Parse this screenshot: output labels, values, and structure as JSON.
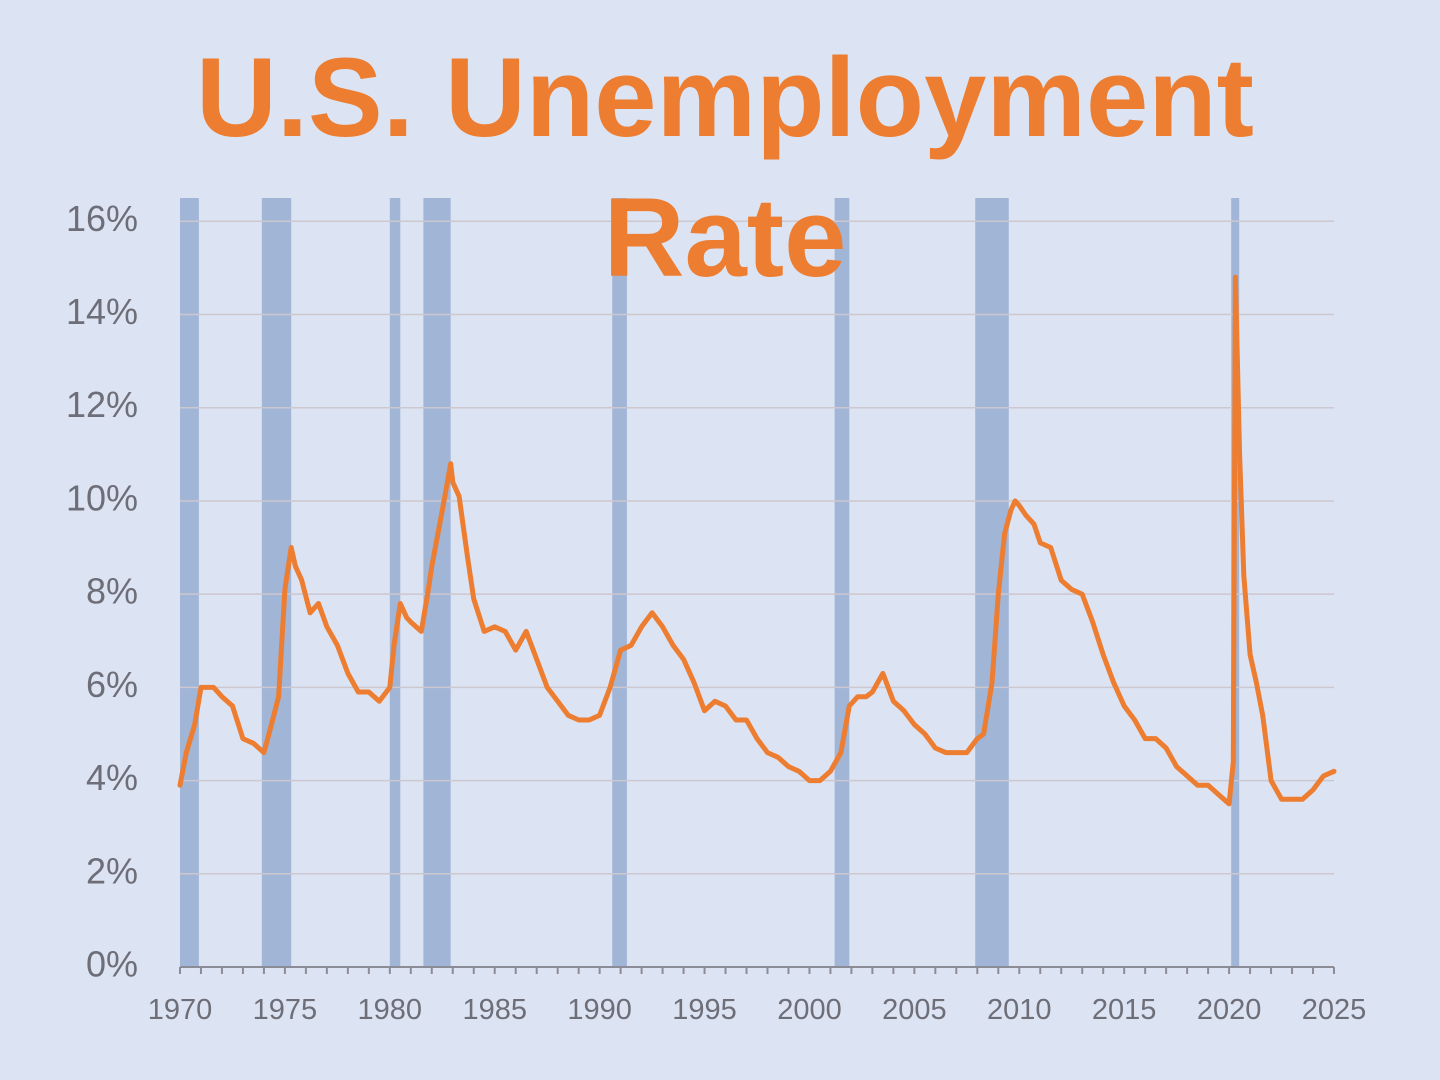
{
  "chart_data": {
    "type": "line",
    "title": "U.S. Unemployment Rate",
    "title_lines": [
      "U.S. Unemployment",
      "Rate"
    ],
    "xlabel": "",
    "ylabel": "",
    "xlim": [
      1970,
      2025
    ],
    "ylim": [
      0,
      16.5
    ],
    "y_ticks": [
      0,
      2,
      4,
      6,
      8,
      10,
      12,
      14,
      16
    ],
    "y_tick_labels": [
      "0%",
      "2%",
      "4%",
      "6%",
      "8%",
      "10%",
      "12%",
      "14%",
      "16%"
    ],
    "x_ticks": [
      1970,
      1975,
      1980,
      1985,
      1990,
      1995,
      2000,
      2005,
      2010,
      2015,
      2020,
      2025
    ],
    "x_tick_labels": [
      "1970",
      "1975",
      "1980",
      "1985",
      "1990",
      "1995",
      "2000",
      "2005",
      "2010",
      "2015",
      "2020",
      "2025"
    ],
    "grid": true,
    "legend": "none",
    "colors": {
      "background": "#dce4f3",
      "line": "#ed7d31",
      "title": "#ed7d31",
      "recession": "#8ea5cd",
      "grid": "#cdc7cf",
      "axis_text": "#6e6e78",
      "axis": "#8c8c96"
    },
    "recession_bands": [
      {
        "start": 1970.0,
        "end": 1970.9
      },
      {
        "start": 1973.9,
        "end": 1975.3
      },
      {
        "start": 1980.0,
        "end": 1980.5
      },
      {
        "start": 1981.6,
        "end": 1982.9
      },
      {
        "start": 1990.6,
        "end": 1991.3
      },
      {
        "start": 2001.2,
        "end": 2001.9
      },
      {
        "start": 2007.9,
        "end": 2009.5
      },
      {
        "start": 2020.1,
        "end": 2020.4
      }
    ],
    "series": [
      {
        "values_x": [
          1970.0,
          1970.3,
          1970.7,
          1971.0,
          1971.3,
          1971.6,
          1972.0,
          1972.5,
          1973.0,
          1973.5,
          1974.0,
          1974.3,
          1974.7,
          1975.0,
          1975.3,
          1975.5,
          1975.8,
          1976.2,
          1976.6,
          1977.0,
          1977.5,
          1978.0,
          1978.5,
          1979.0,
          1979.5,
          1980.0,
          1980.2,
          1980.5,
          1980.8,
          1981.0,
          1981.5,
          1981.8,
          1982.0,
          1982.5,
          1982.9,
          1983.0,
          1983.3,
          1983.7,
          1984.0,
          1984.5,
          1985.0,
          1985.5,
          1986.0,
          1986.5,
          1987.0,
          1987.5,
          1988.0,
          1988.5,
          1989.0,
          1989.5,
          1990.0,
          1990.5,
          1991.0,
          1991.5,
          1992.0,
          1992.5,
          1993.0,
          1993.5,
          1994.0,
          1994.5,
          1995.0,
          1995.5,
          1996.0,
          1996.5,
          1997.0,
          1997.5,
          1998.0,
          1998.5,
          1999.0,
          1999.5,
          2000.0,
          2000.5,
          2001.0,
          2001.5,
          2001.9,
          2002.3,
          2002.7,
          2003.0,
          2003.5,
          2004.0,
          2004.5,
          2005.0,
          2005.5,
          2006.0,
          2006.5,
          2007.0,
          2007.5,
          2008.0,
          2008.3,
          2008.7,
          2009.0,
          2009.3,
          2009.6,
          2009.8,
          2010.0,
          2010.3,
          2010.7,
          2011.0,
          2011.5,
          2012.0,
          2012.5,
          2013.0,
          2013.5,
          2014.0,
          2014.5,
          2015.0,
          2015.5,
          2016.0,
          2016.5,
          2017.0,
          2017.5,
          2018.0,
          2018.5,
          2019.0,
          2019.5,
          2020.0,
          2020.2,
          2020.3,
          2020.5,
          2020.7,
          2021.0,
          2021.3,
          2021.6,
          2022.0,
          2022.5,
          2023.0,
          2023.5,
          2024.0,
          2024.5,
          2025.0
        ],
        "values": [
          3.9,
          4.6,
          5.2,
          6.0,
          6.0,
          6.0,
          5.8,
          5.6,
          4.9,
          4.8,
          4.6,
          5.1,
          5.8,
          8.1,
          9.0,
          8.6,
          8.3,
          7.6,
          7.8,
          7.3,
          6.9,
          6.3,
          5.9,
          5.9,
          5.7,
          6.0,
          6.9,
          7.8,
          7.5,
          7.4,
          7.2,
          8.0,
          8.6,
          9.8,
          10.8,
          10.4,
          10.1,
          8.8,
          7.9,
          7.2,
          7.3,
          7.2,
          6.8,
          7.2,
          6.6,
          6.0,
          5.7,
          5.4,
          5.3,
          5.3,
          5.4,
          6.0,
          6.8,
          6.9,
          7.3,
          7.6,
          7.3,
          6.9,
          6.6,
          6.1,
          5.5,
          5.7,
          5.6,
          5.3,
          5.3,
          4.9,
          4.6,
          4.5,
          4.3,
          4.2,
          4.0,
          4.0,
          4.2,
          4.6,
          5.6,
          5.8,
          5.8,
          5.9,
          6.3,
          5.7,
          5.5,
          5.2,
          5.0,
          4.7,
          4.6,
          4.6,
          4.6,
          4.9,
          5.0,
          6.1,
          8.0,
          9.3,
          9.8,
          10.0,
          9.9,
          9.7,
          9.5,
          9.1,
          9.0,
          8.3,
          8.1,
          8.0,
          7.4,
          6.7,
          6.1,
          5.6,
          5.3,
          4.9,
          4.9,
          4.7,
          4.3,
          4.1,
          3.9,
          3.9,
          3.7,
          3.5,
          4.4,
          14.8,
          11.0,
          8.4,
          6.7,
          6.1,
          5.4,
          4.0,
          3.6,
          3.6,
          3.6,
          3.8,
          4.1,
          4.2
        ]
      }
    ]
  }
}
